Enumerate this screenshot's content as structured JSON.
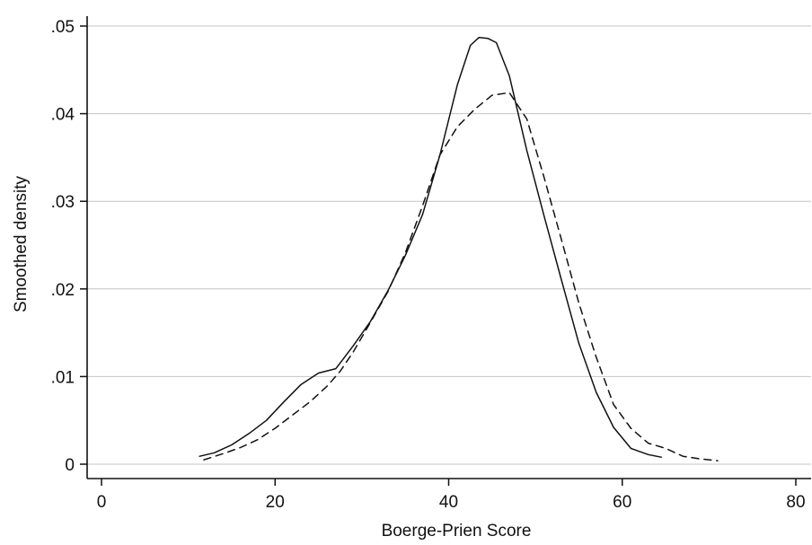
{
  "chart_data": {
    "type": "line",
    "title": "",
    "xlabel": "Boerge-Prien Score",
    "ylabel": "Smoothed density",
    "xlim": [
      0,
      80
    ],
    "ylim": [
      0,
      0.05
    ],
    "x_ticks": [
      {
        "value": 0,
        "label": "0"
      },
      {
        "value": 20,
        "label": "20"
      },
      {
        "value": 40,
        "label": "40"
      },
      {
        "value": 60,
        "label": "60"
      },
      {
        "value": 80,
        "label": "80"
      }
    ],
    "y_ticks": [
      {
        "value": 0,
        "label": "0"
      },
      {
        "value": 0.01,
        "label": ".01"
      },
      {
        "value": 0.02,
        "label": ".02"
      },
      {
        "value": 0.03,
        "label": ".03"
      },
      {
        "value": 0.04,
        "label": ".04"
      },
      {
        "value": 0.05,
        "label": ".05"
      }
    ],
    "grid": "horizontal",
    "legend": "none",
    "series": [
      {
        "style": "solid",
        "color": "#111111",
        "points": [
          [
            11.3,
            0.0009
          ],
          [
            13,
            0.0013
          ],
          [
            15,
            0.0022
          ],
          [
            17,
            0.0035
          ],
          [
            19,
            0.005
          ],
          [
            21,
            0.0071
          ],
          [
            23,
            0.0091
          ],
          [
            25,
            0.0104
          ],
          [
            27,
            0.0109
          ],
          [
            29,
            0.0135
          ],
          [
            31,
            0.0163
          ],
          [
            33,
            0.0198
          ],
          [
            35,
            0.0238
          ],
          [
            37,
            0.0285
          ],
          [
            39,
            0.0353
          ],
          [
            41,
            0.0433
          ],
          [
            42.5,
            0.0478
          ],
          [
            43.5,
            0.0487
          ],
          [
            44.5,
            0.0486
          ],
          [
            45.5,
            0.0481
          ],
          [
            47,
            0.0443
          ],
          [
            49,
            0.0358
          ],
          [
            51,
            0.0283
          ],
          [
            53,
            0.021
          ],
          [
            55,
            0.0138
          ],
          [
            57,
            0.0082
          ],
          [
            59,
            0.0042
          ],
          [
            61,
            0.0018
          ],
          [
            63,
            0.0011
          ],
          [
            64.5,
            0.0008
          ]
        ]
      },
      {
        "style": "dashed",
        "color": "#111111",
        "points": [
          [
            11.8,
            0.0005
          ],
          [
            14,
            0.0012
          ],
          [
            16,
            0.0019
          ],
          [
            18,
            0.0028
          ],
          [
            20,
            0.0041
          ],
          [
            22,
            0.0056
          ],
          [
            24,
            0.0071
          ],
          [
            26,
            0.0089
          ],
          [
            27.5,
            0.0106
          ],
          [
            29,
            0.0128
          ],
          [
            31,
            0.0162
          ],
          [
            33,
            0.0197
          ],
          [
            35,
            0.0241
          ],
          [
            37,
            0.0295
          ],
          [
            39,
            0.0353
          ],
          [
            41,
            0.0385
          ],
          [
            43,
            0.0405
          ],
          [
            45,
            0.0421
          ],
          [
            47,
            0.0424
          ],
          [
            49,
            0.0394
          ],
          [
            51,
            0.0327
          ],
          [
            53,
            0.0256
          ],
          [
            55,
            0.0184
          ],
          [
            57,
            0.0122
          ],
          [
            59,
            0.0068
          ],
          [
            61,
            0.0041
          ],
          [
            63,
            0.0024
          ],
          [
            65,
            0.0018
          ],
          [
            67,
            0.0009
          ],
          [
            69,
            0.0006
          ],
          [
            71,
            0.0004
          ]
        ]
      }
    ]
  }
}
